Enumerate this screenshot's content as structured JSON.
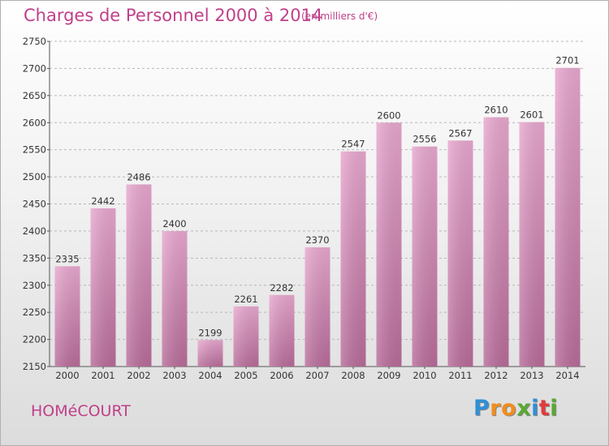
{
  "title": "Charges de Personnel 2000 à 2014",
  "subtitle": "(en milliers d'€)",
  "commune": "HOMéCOURT",
  "brand": {
    "letters": [
      "P",
      "r",
      "o",
      "x",
      "i",
      "t",
      "i"
    ],
    "colors": [
      "#2f8fd6",
      "#f28c1e",
      "#f28c1e",
      "#5aa832",
      "#2f8fd6",
      "#e23a3a",
      "#5aa832"
    ]
  },
  "colors": {
    "title": "#c0408a",
    "bar_top": "#e8a8cf",
    "bar_bottom": "#b86c9a",
    "grid": "#b8b8b8"
  },
  "chart_data": {
    "type": "bar",
    "categories": [
      "2000",
      "2001",
      "2002",
      "2003",
      "2004",
      "2005",
      "2006",
      "2007",
      "2008",
      "2009",
      "2010",
      "2011",
      "2012",
      "2013",
      "2014"
    ],
    "values": [
      2335,
      2442,
      2486,
      2400,
      2199,
      2261,
      2282,
      2370,
      2547,
      2600,
      2556,
      2567,
      2610,
      2601,
      2701
    ],
    "title": "Charges de Personnel 2000 à 2014",
    "xlabel": "",
    "ylabel": "",
    "ylim": [
      2150,
      2750
    ],
    "yticks": [
      2150,
      2200,
      2250,
      2300,
      2350,
      2400,
      2450,
      2500,
      2550,
      2600,
      2650,
      2700,
      2750
    ],
    "grid": "dashed horizontal",
    "legend": "none",
    "data_labels": true
  }
}
